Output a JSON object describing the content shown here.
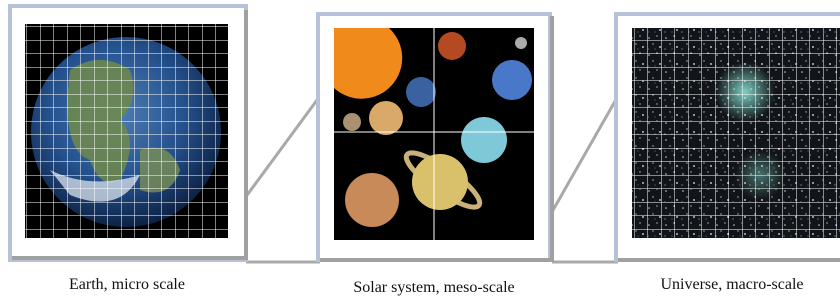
{
  "panels": [
    {
      "caption": "Earth, micro scale"
    },
    {
      "caption": "Solar system, meso-scale"
    },
    {
      "caption": "Universe, macro-scale"
    }
  ]
}
